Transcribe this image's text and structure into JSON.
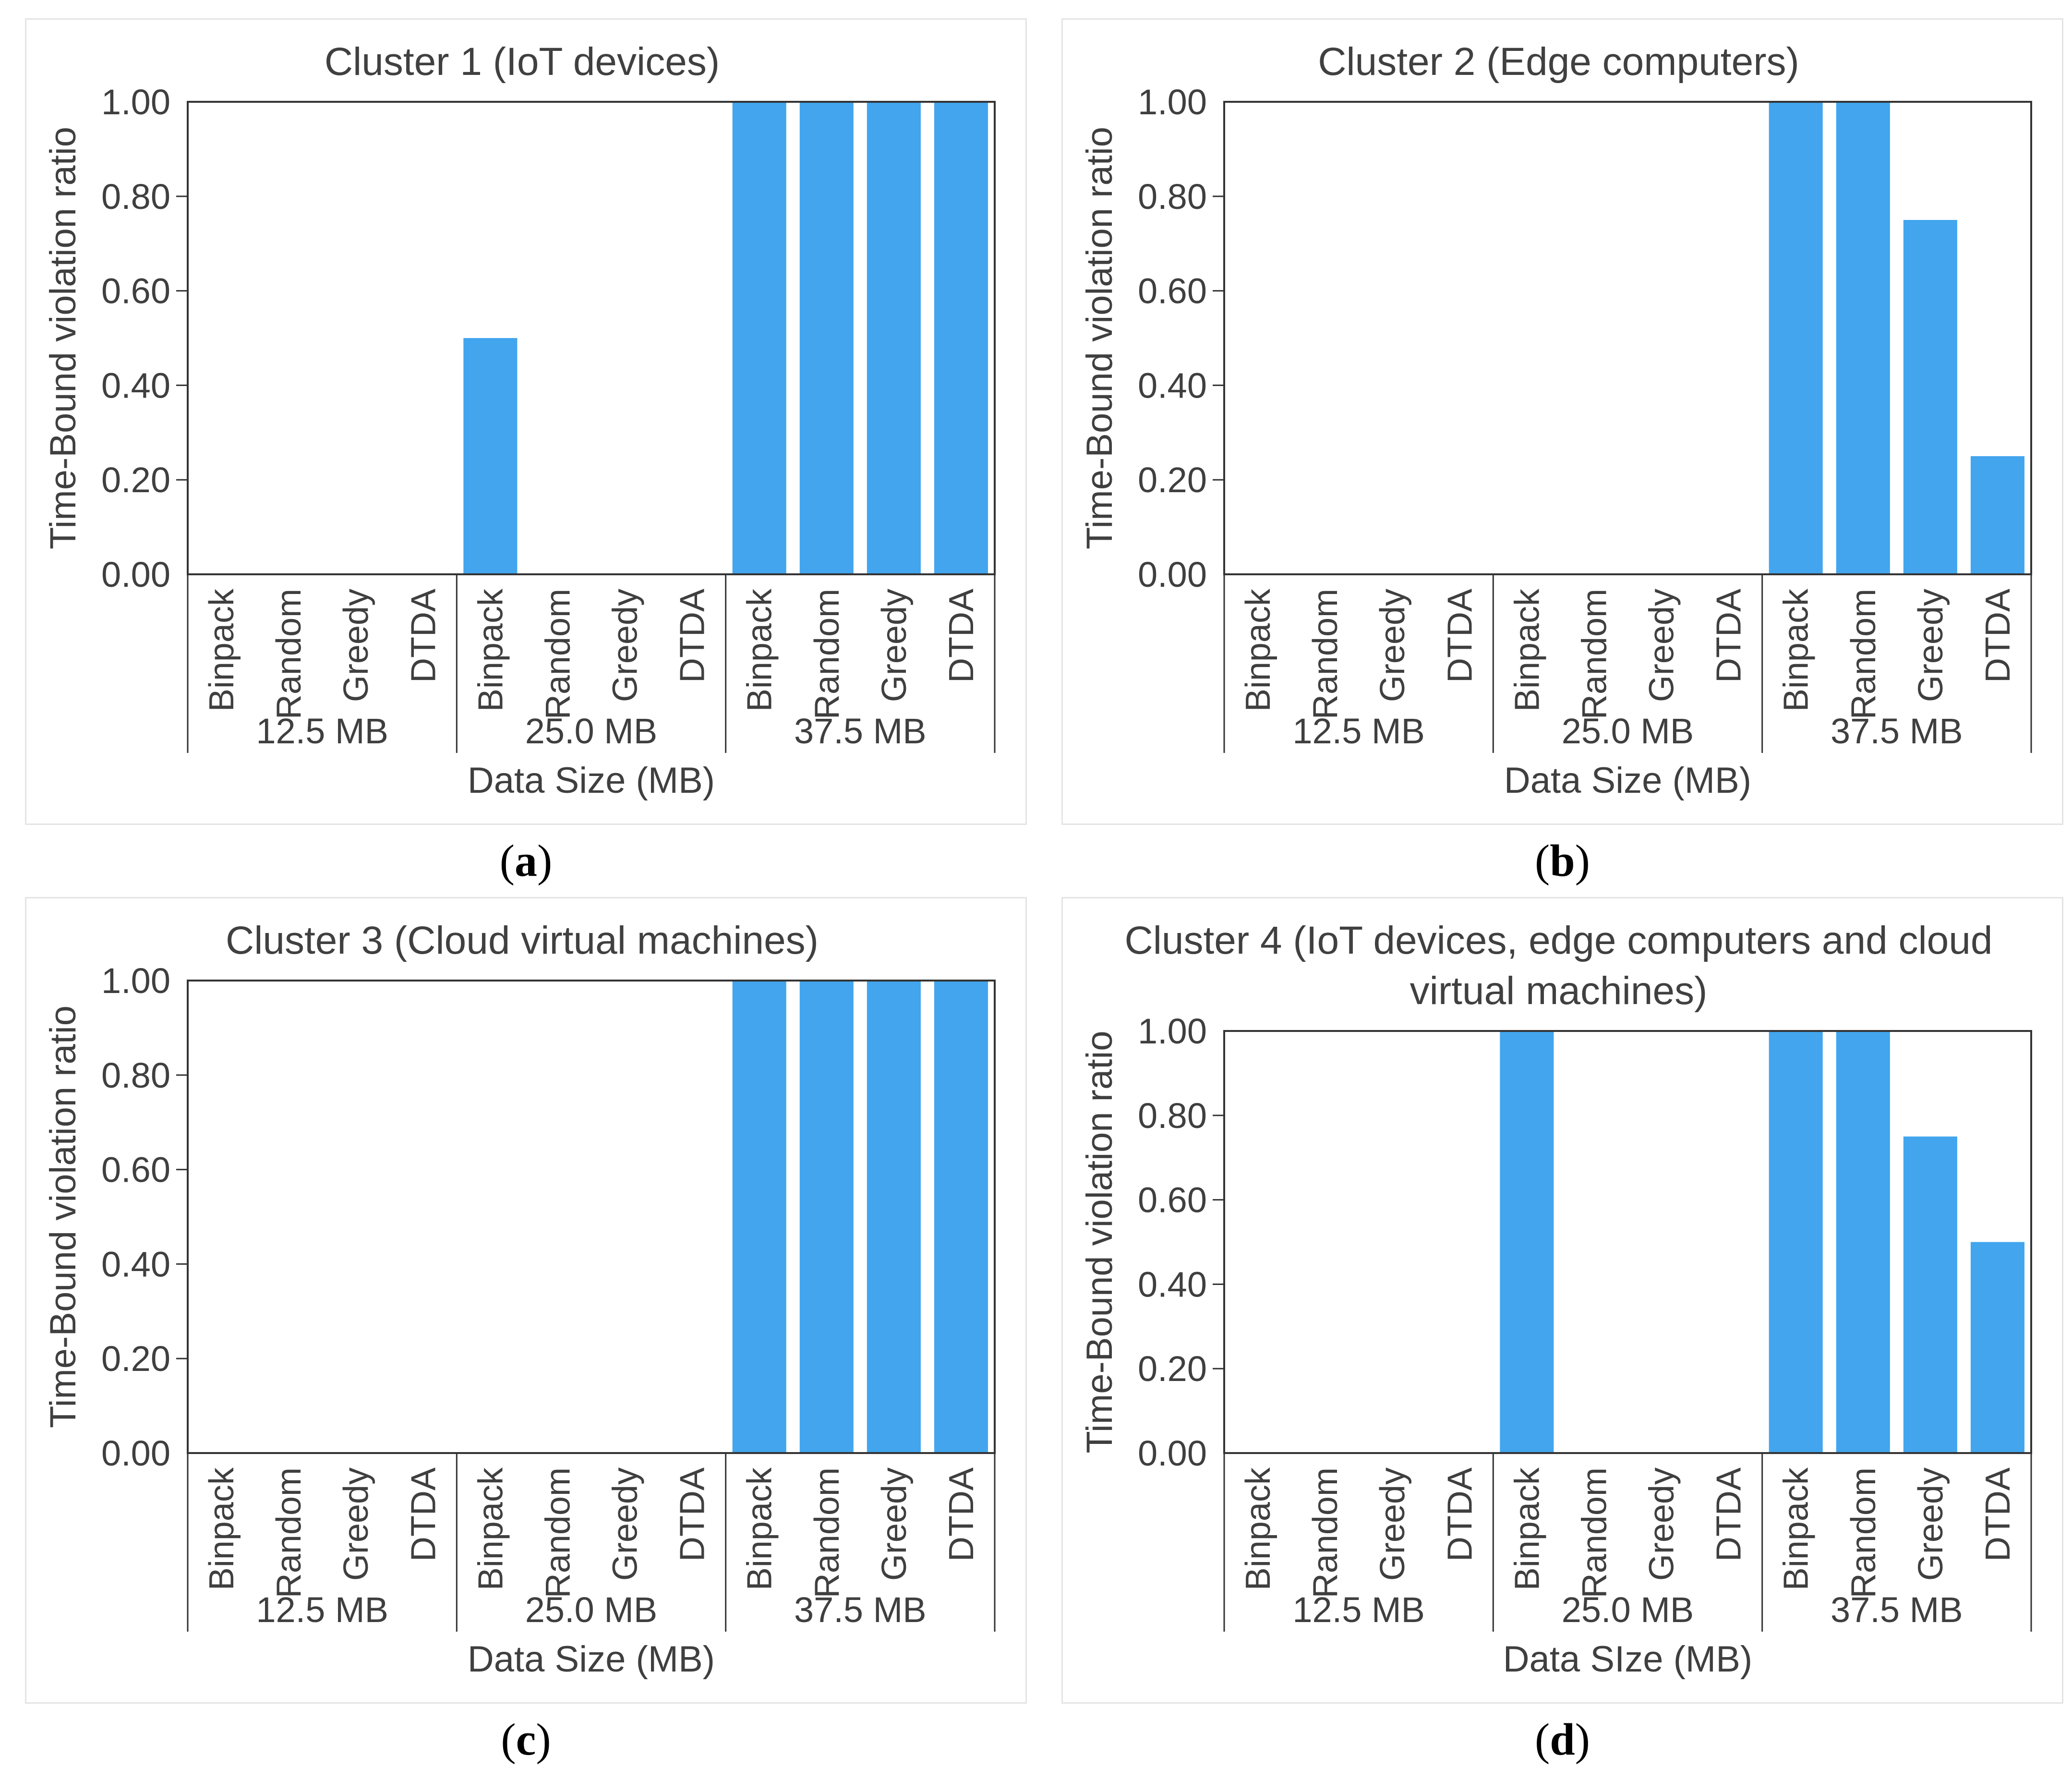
{
  "colors": {
    "bar": "#42A5EE",
    "axis": "#333333",
    "text": "#3F3F3F",
    "title_text": "#404040",
    "panel_border": "#E4E4E4",
    "caption_text": "#000000",
    "background": "#FFFFFF"
  },
  "chart_data": [
    {
      "type": "bar",
      "title": "Cluster 1 (IoT devices)",
      "title_lines": [
        "Cluster 1 (IoT devices)"
      ],
      "xlabel": "Data Size (MB)",
      "ylabel": "Time-Bound violation ratio",
      "ylim": [
        0,
        1
      ],
      "yticks": [
        0,
        0.2,
        0.4,
        0.6,
        0.8,
        1
      ],
      "ytick_labels": [
        "0.00",
        "0.20",
        "0.40",
        "0.60",
        "0.80",
        "1.00"
      ],
      "categories": [
        "12.5 MB",
        "25.0 MB",
        "37.5 MB"
      ],
      "series_labels": [
        "Binpack",
        "Random",
        "Greedy",
        "DTDA"
      ],
      "values": [
        [
          0,
          0,
          0,
          0
        ],
        [
          0.5,
          0,
          0,
          0
        ],
        [
          1,
          1,
          1,
          1
        ]
      ],
      "legend": "none",
      "grid": false,
      "caption": "(a)"
    },
    {
      "type": "bar",
      "title": "Cluster 2 (Edge computers)",
      "title_lines": [
        "Cluster 2 (Edge computers)"
      ],
      "xlabel": "Data Size (MB)",
      "ylabel": "Time-Bound violation ratio",
      "ylim": [
        0,
        1
      ],
      "yticks": [
        0,
        0.2,
        0.4,
        0.6,
        0.8,
        1
      ],
      "ytick_labels": [
        "0.00",
        "0.20",
        "0.40",
        "0.60",
        "0.80",
        "1.00"
      ],
      "categories": [
        "12.5 MB",
        "25.0 MB",
        "37.5 MB"
      ],
      "series_labels": [
        "Binpack",
        "Random",
        "Greedy",
        "DTDA"
      ],
      "values": [
        [
          0,
          0,
          0,
          0
        ],
        [
          0,
          0,
          0,
          0
        ],
        [
          1,
          1,
          0.75,
          0.25
        ]
      ],
      "legend": "none",
      "grid": false,
      "caption": "(b)"
    },
    {
      "type": "bar",
      "title": "Cluster 3 (Cloud virtual machines)",
      "title_lines": [
        "Cluster 3 (Cloud virtual machines)"
      ],
      "xlabel": "Data Size (MB)",
      "ylabel": "Time-Bound violation ratio",
      "ylim": [
        0,
        1
      ],
      "yticks": [
        0,
        0.2,
        0.4,
        0.6,
        0.8,
        1
      ],
      "ytick_labels": [
        "0.00",
        "0.20",
        "0.40",
        "0.60",
        "0.80",
        "1.00"
      ],
      "categories": [
        "12.5 MB",
        "25.0 MB",
        "37.5 MB"
      ],
      "series_labels": [
        "Binpack",
        "Random",
        "Greedy",
        "DTDA"
      ],
      "values": [
        [
          0,
          0,
          0,
          0
        ],
        [
          0,
          0,
          0,
          0
        ],
        [
          1,
          1,
          1,
          1
        ]
      ],
      "legend": "none",
      "grid": false,
      "caption": "(c)"
    },
    {
      "type": "bar",
      "title": "Cluster 4 (IoT devices, edge computers and cloud virtual machines)",
      "title_lines": [
        "Cluster 4 (IoT devices, edge computers and cloud",
        "virtual machines)"
      ],
      "xlabel": "Data SIze (MB)",
      "ylabel": "Time-Bound violation ratio",
      "ylim": [
        0,
        1
      ],
      "yticks": [
        0,
        0.2,
        0.4,
        0.6,
        0.8,
        1
      ],
      "ytick_labels": [
        "0.00",
        "0.20",
        "0.40",
        "0.60",
        "0.80",
        "1.00"
      ],
      "categories": [
        "12.5 MB",
        "25.0 MB",
        "37.5 MB"
      ],
      "series_labels": [
        "Binpack",
        "Random",
        "Greedy",
        "DTDA"
      ],
      "values": [
        [
          0,
          0,
          0,
          0
        ],
        [
          1,
          0,
          0,
          0
        ],
        [
          1,
          1,
          0.75,
          0.5
        ]
      ],
      "legend": "none",
      "grid": false,
      "caption": "(d)"
    }
  ]
}
